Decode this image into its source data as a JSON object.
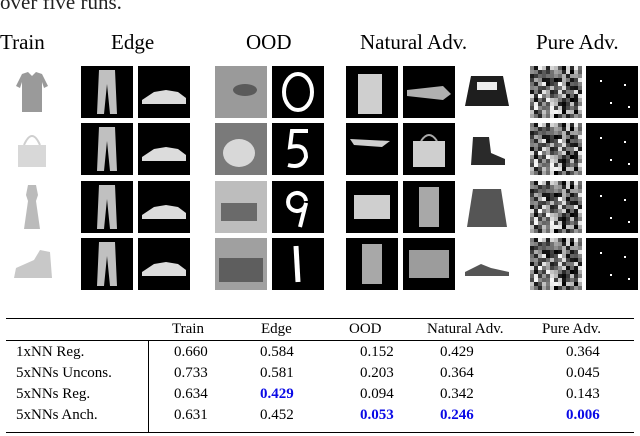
{
  "caption_fragment": "over five runs.",
  "groups": {
    "train": "Train",
    "edge": "Edge",
    "ood": "OOD",
    "natural_adv": "Natural Adv.",
    "pure_adv": "Pure Adv."
  },
  "table": {
    "columns": [
      "Train",
      "Edge",
      "OOD",
      "Natural Adv.",
      "Pure Adv."
    ],
    "rows": [
      {
        "label": "1xNN Reg.",
        "values": [
          "0.660",
          "0.584",
          "0.152",
          "0.429",
          "0.364"
        ],
        "highlight": [
          false,
          false,
          false,
          false,
          false
        ]
      },
      {
        "label": "5xNNs Uncons.",
        "values": [
          "0.733",
          "0.581",
          "0.203",
          "0.364",
          "0.045"
        ],
        "highlight": [
          false,
          false,
          false,
          false,
          false
        ]
      },
      {
        "label": "5xNNs Reg.",
        "values": [
          "0.634",
          "0.429",
          "0.094",
          "0.342",
          "0.143"
        ],
        "highlight": [
          false,
          true,
          false,
          false,
          false
        ]
      },
      {
        "label": "5xNNs Anch.",
        "values": [
          "0.631",
          "0.452",
          "0.053",
          "0.246",
          "0.006"
        ],
        "highlight": [
          false,
          false,
          true,
          true,
          true
        ]
      }
    ],
    "highlight_color": "#0a0ae6"
  },
  "icons": {
    "train": [
      "shirt-icon",
      "handbag-icon",
      "dress-icon",
      "ankle-boot-icon"
    ],
    "edge": [
      [
        "trousers-icon",
        "sneaker-icon"
      ],
      [
        "trousers-icon",
        "sneaker-icon"
      ],
      [
        "trousers-icon",
        "sneaker-icon"
      ],
      [
        "trousers-icon",
        "sneaker-icon"
      ]
    ],
    "ood": [
      [
        "bird-photo-icon",
        "digit-0-icon"
      ],
      [
        "cat-photo-icon",
        "digit-5-icon"
      ],
      [
        "car-photo-icon",
        "digit-9-icon"
      ],
      [
        "truck-photo-icon",
        "digit-1-icon"
      ]
    ],
    "natural_adv": [
      [
        "bag-like-icon",
        "shoe-like-icon",
        "lee-sweater-icon"
      ],
      [
        "sandal-like-icon",
        "bag-icon",
        "boot-icon"
      ],
      [
        "shirt-like-icon",
        "boot-like-icon",
        "denim-jacket-icon"
      ],
      [
        "boot-like-icon",
        "sneaker-like-icon",
        "sandal-icon"
      ]
    ],
    "pure_adv": [
      [
        "noise-icon",
        "sparse-dots-icon"
      ],
      [
        "noise-icon",
        "sparse-dots-icon"
      ],
      [
        "noise-icon",
        "sparse-dots-icon"
      ],
      [
        "noise-icon",
        "sparse-dots-icon"
      ]
    ]
  }
}
